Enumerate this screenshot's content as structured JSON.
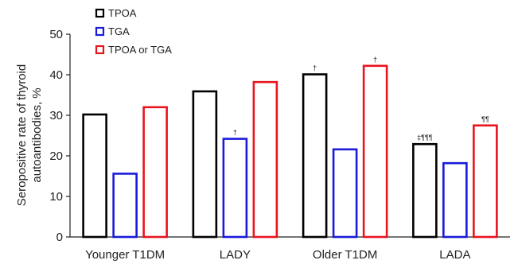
{
  "chart_data": {
    "type": "bar",
    "categories": [
      "Younger T1DM",
      "LADY",
      "Older T1DM",
      "LADA"
    ],
    "series": [
      {
        "name": "TPOA",
        "color": "#000000",
        "values": [
          30.2,
          35.9,
          40.1,
          22.9
        ]
      },
      {
        "name": "TGA",
        "color": "#1a1adb",
        "values": [
          15.6,
          24.2,
          21.6,
          18.2
        ]
      },
      {
        "name": "TPOA or TGA",
        "color": "#e8141e",
        "values": [
          32.0,
          38.2,
          42.2,
          27.5
        ]
      }
    ],
    "annotations": [
      {
        "category": "LADY",
        "series": "TGA",
        "text": "†"
      },
      {
        "category": "Older T1DM",
        "series": "TPOA",
        "text": "†"
      },
      {
        "category": "Older T1DM",
        "series": "TPOA or TGA",
        "text": "†"
      },
      {
        "category": "LADA",
        "series": "TPOA",
        "text": "‡¶¶¶"
      },
      {
        "category": "LADA",
        "series": "TPOA or TGA",
        "text": "¶¶"
      }
    ],
    "ylabel_lines": [
      "Seropositive rate of thyroid",
      "autoantibodies, %"
    ],
    "xlabel": "",
    "ylim": [
      0,
      50
    ],
    "yticks": [
      0,
      10,
      20,
      30,
      40,
      50
    ],
    "grid": false,
    "legend_position": "top-left"
  }
}
